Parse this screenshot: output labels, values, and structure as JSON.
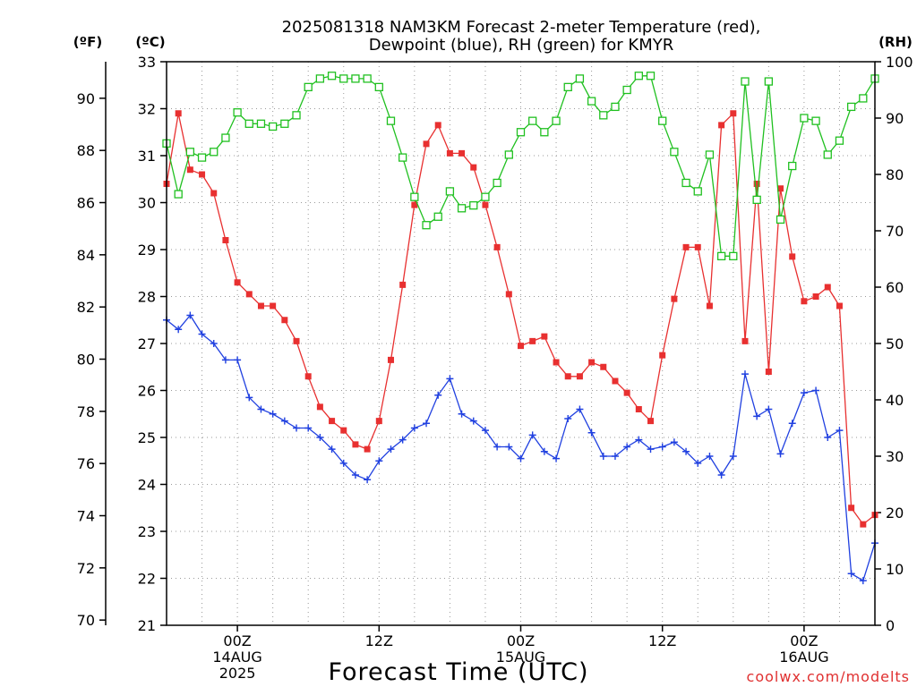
{
  "chart_data": {
    "type": "line",
    "title_line1": "2025081318 NAM3KM Forecast 2-meter Temperature (red),",
    "title_line2": "Dewpoint (blue), RH (green) for KMYR",
    "xlabel": "Forecast Time (UTC)",
    "credit": "coolwx.com/modelts",
    "units": {
      "f": "(ºF)",
      "c": "(ºC)",
      "rh": "(RH)"
    },
    "x_range_hours": [
      0,
      60
    ],
    "x_ticks": [
      {
        "hour": 6,
        "labels": [
          "00Z",
          "14AUG",
          "2025"
        ]
      },
      {
        "hour": 18,
        "labels": [
          "12Z"
        ]
      },
      {
        "hour": 30,
        "labels": [
          "00Z",
          "15AUG"
        ]
      },
      {
        "hour": 42,
        "labels": [
          "12Z"
        ]
      },
      {
        "hour": 54,
        "labels": [
          "00Z",
          "16AUG"
        ]
      }
    ],
    "ylim_c": [
      21,
      33
    ],
    "yticks_c": [
      "21",
      "22",
      "23",
      "24",
      "25",
      "26",
      "27",
      "28",
      "29",
      "30",
      "31",
      "32",
      "33"
    ],
    "ylim_f": [
      69.8,
      91.4
    ],
    "yticks_f": [
      "70",
      "72",
      "74",
      "76",
      "78",
      "80",
      "82",
      "84",
      "86",
      "88",
      "90"
    ],
    "ylim_rh": [
      0,
      100
    ],
    "yticks_rh": [
      "0",
      "10",
      "20",
      "30",
      "40",
      "50",
      "60",
      "70",
      "80",
      "90",
      "100"
    ],
    "grid": true,
    "colors": {
      "temperature": "#e83030",
      "dewpoint": "#2040e0",
      "rh": "#20c020"
    },
    "series": [
      {
        "key": "temperature",
        "x": [
          0,
          1,
          2,
          3,
          4,
          5,
          6,
          7,
          8,
          9,
          10,
          11,
          12,
          13,
          14,
          15,
          16,
          17,
          18,
          19,
          20,
          21,
          22,
          23,
          24,
          25,
          26,
          27,
          28,
          29,
          30,
          31,
          32,
          33,
          34,
          35,
          36,
          37,
          38,
          39,
          40,
          41,
          42,
          43,
          44,
          45,
          46,
          47,
          48,
          49,
          50,
          51,
          52,
          53,
          54,
          55,
          56,
          57,
          58,
          59,
          60
        ],
        "y": [
          30.4,
          31.9,
          30.7,
          30.6,
          30.2,
          29.2,
          28.3,
          28.05,
          27.8,
          27.8,
          27.5,
          27.05,
          26.3,
          25.65,
          25.35,
          25.15,
          24.85,
          24.75,
          25.35,
          26.65,
          28.25,
          29.95,
          31.25,
          31.65,
          31.05,
          31.05,
          30.75,
          29.95,
          29.05,
          28.05,
          26.95,
          27.05,
          27.15,
          26.6,
          26.3,
          26.3,
          26.6,
          26.5,
          26.2,
          25.95,
          25.6,
          25.35,
          26.75,
          27.95,
          29.05,
          29.05,
          27.8,
          31.65,
          31.9,
          27.05,
          30.4,
          26.4,
          30.3,
          28.85,
          27.9,
          28.0,
          28.2,
          27.8,
          23.5,
          23.15,
          23.35
        ]
      },
      {
        "key": "dewpoint",
        "x": [
          0,
          1,
          2,
          3,
          4,
          5,
          6,
          7,
          8,
          9,
          10,
          11,
          12,
          13,
          14,
          15,
          16,
          17,
          18,
          19,
          20,
          21,
          22,
          23,
          24,
          25,
          26,
          27,
          28,
          29,
          30,
          31,
          32,
          33,
          34,
          35,
          36,
          37,
          38,
          39,
          40,
          41,
          42,
          43,
          44,
          45,
          46,
          47,
          48,
          49,
          50,
          51,
          52,
          53,
          54,
          55,
          56,
          57,
          58,
          59,
          60
        ],
        "y": [
          27.5,
          27.3,
          27.6,
          27.2,
          27.0,
          26.65,
          26.65,
          25.85,
          25.6,
          25.5,
          25.35,
          25.2,
          25.2,
          25.0,
          24.75,
          24.45,
          24.2,
          24.1,
          24.5,
          24.75,
          24.95,
          25.2,
          25.3,
          25.9,
          26.25,
          25.5,
          25.35,
          25.15,
          24.8,
          24.8,
          24.55,
          25.05,
          24.7,
          24.55,
          25.4,
          25.6,
          25.1,
          24.6,
          24.6,
          24.8,
          24.95,
          24.75,
          24.8,
          24.9,
          24.7,
          24.45,
          24.6,
          24.2,
          24.6,
          26.35,
          25.45,
          25.6,
          24.65,
          25.3,
          25.95,
          26.0,
          25.0,
          25.15,
          22.1,
          21.95,
          22.75
        ]
      },
      {
        "key": "rh",
        "x": [
          0,
          1,
          2,
          3,
          4,
          5,
          6,
          7,
          8,
          9,
          10,
          11,
          12,
          13,
          14,
          15,
          16,
          17,
          18,
          19,
          20,
          21,
          22,
          23,
          24,
          25,
          26,
          27,
          28,
          29,
          30,
          31,
          32,
          33,
          34,
          35,
          36,
          37,
          38,
          39,
          40,
          41,
          42,
          43,
          44,
          45,
          46,
          47,
          48,
          49,
          50,
          51,
          52,
          53,
          54,
          55,
          56,
          57,
          58,
          59,
          60
        ],
        "y": [
          85.5,
          76.5,
          84,
          83,
          84,
          86.5,
          91,
          89,
          89,
          88.5,
          89,
          90.5,
          95.5,
          97,
          97.5,
          97,
          97,
          97,
          95.5,
          89.5,
          83,
          76,
          71,
          72.5,
          77,
          74,
          74.5,
          76,
          78.5,
          83.5,
          87.5,
          89.5,
          87.5,
          89.5,
          95.5,
          97,
          93,
          90.5,
          92,
          95,
          97.5,
          97.5,
          89.5,
          84,
          78.5,
          77,
          83.5,
          65.5,
          65.5,
          96.5,
          75.5,
          96.5,
          72,
          81.5,
          90,
          89.5,
          83.5,
          86,
          92,
          93.5,
          97
        ]
      }
    ]
  }
}
